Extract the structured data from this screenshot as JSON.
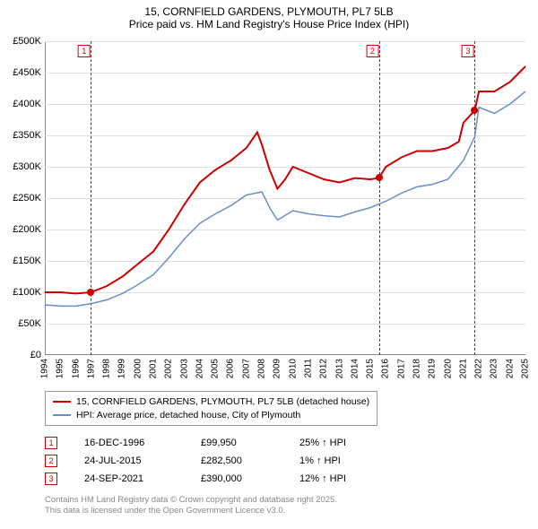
{
  "title": {
    "line1": "15, CORNFIELD GARDENS, PLYMOUTH, PL7 5LB",
    "line2": "Price paid vs. HM Land Registry's House Price Index (HPI)"
  },
  "chart": {
    "type": "line",
    "background_color": "#ffffff",
    "grid_color": "#e0e0e0",
    "axis_color": "#888888",
    "ylim": [
      0,
      500000
    ],
    "ytick_step": 50000,
    "ytick_labels": [
      "£0",
      "£50K",
      "£100K",
      "£150K",
      "£200K",
      "£250K",
      "£300K",
      "£350K",
      "£400K",
      "£450K",
      "£500K"
    ],
    "x_years": [
      1994,
      1995,
      1996,
      1997,
      1998,
      1999,
      2000,
      2001,
      2002,
      2003,
      2004,
      2005,
      2006,
      2007,
      2008,
      2009,
      2010,
      2011,
      2012,
      2013,
      2014,
      2015,
      2016,
      2017,
      2018,
      2019,
      2020,
      2021,
      2022,
      2023,
      2024,
      2025
    ],
    "series": [
      {
        "name": "price_paid",
        "label": "15, CORNFIELD GARDENS, PLYMOUTH, PL7 5LB (detached house)",
        "color": "#cc0000",
        "line_width": 2,
        "data": [
          [
            1994,
            100000
          ],
          [
            1995,
            100000
          ],
          [
            1996,
            98000
          ],
          [
            1996.96,
            99950
          ],
          [
            1998,
            110000
          ],
          [
            1999,
            125000
          ],
          [
            2000,
            145000
          ],
          [
            2001,
            165000
          ],
          [
            2002,
            200000
          ],
          [
            2003,
            240000
          ],
          [
            2004,
            275000
          ],
          [
            2005,
            295000
          ],
          [
            2006,
            310000
          ],
          [
            2007,
            330000
          ],
          [
            2007.7,
            355000
          ],
          [
            2008,
            335000
          ],
          [
            2008.5,
            295000
          ],
          [
            2009,
            265000
          ],
          [
            2009.5,
            280000
          ],
          [
            2010,
            300000
          ],
          [
            2011,
            290000
          ],
          [
            2012,
            280000
          ],
          [
            2013,
            275000
          ],
          [
            2014,
            282000
          ],
          [
            2015,
            280000
          ],
          [
            2015.56,
            282500
          ],
          [
            2016,
            300000
          ],
          [
            2017,
            315000
          ],
          [
            2018,
            325000
          ],
          [
            2019,
            325000
          ],
          [
            2020,
            330000
          ],
          [
            2020.7,
            340000
          ],
          [
            2021,
            370000
          ],
          [
            2021.73,
            390000
          ],
          [
            2022,
            420000
          ],
          [
            2023,
            420000
          ],
          [
            2024,
            435000
          ],
          [
            2025,
            460000
          ]
        ]
      },
      {
        "name": "hpi",
        "label": "HPI: Average price, detached house, City of Plymouth",
        "color": "#6a8fc4",
        "line_width": 1.5,
        "data": [
          [
            1994,
            80000
          ],
          [
            1995,
            78000
          ],
          [
            1996,
            78000
          ],
          [
            1997,
            82000
          ],
          [
            1998,
            88000
          ],
          [
            1999,
            98000
          ],
          [
            2000,
            112000
          ],
          [
            2001,
            128000
          ],
          [
            2002,
            155000
          ],
          [
            2003,
            185000
          ],
          [
            2004,
            210000
          ],
          [
            2005,
            225000
          ],
          [
            2006,
            238000
          ],
          [
            2007,
            255000
          ],
          [
            2008,
            260000
          ],
          [
            2008.5,
            235000
          ],
          [
            2009,
            215000
          ],
          [
            2010,
            230000
          ],
          [
            2011,
            225000
          ],
          [
            2012,
            222000
          ],
          [
            2013,
            220000
          ],
          [
            2014,
            228000
          ],
          [
            2015,
            235000
          ],
          [
            2016,
            245000
          ],
          [
            2017,
            258000
          ],
          [
            2018,
            268000
          ],
          [
            2019,
            272000
          ],
          [
            2020,
            280000
          ],
          [
            2021,
            310000
          ],
          [
            2021.73,
            348000
          ],
          [
            2022,
            395000
          ],
          [
            2023,
            385000
          ],
          [
            2024,
            400000
          ],
          [
            2025,
            420000
          ]
        ]
      }
    ],
    "events": [
      {
        "num": "1",
        "year": 1996.96,
        "price": 99950,
        "date": "16-DEC-1996",
        "price_label": "£99,950",
        "delta": "25% ↑ HPI"
      },
      {
        "num": "2",
        "year": 2015.56,
        "price": 282500,
        "date": "24-JUL-2015",
        "price_label": "£282,500",
        "delta": "1% ↑ HPI"
      },
      {
        "num": "3",
        "year": 2021.73,
        "price": 390000,
        "date": "24-SEP-2021",
        "price_label": "£390,000",
        "delta": "12% ↑ HPI"
      }
    ]
  },
  "attribution": {
    "line1": "Contains HM Land Registry data © Crown copyright and database right 2025.",
    "line2": "This data is licensed under the Open Government Licence v3.0."
  }
}
